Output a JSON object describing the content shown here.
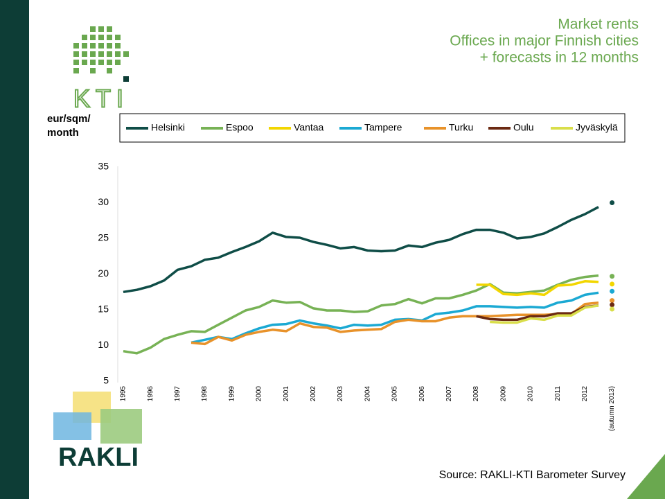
{
  "logos": [
    "KTI",
    "RAKLI"
  ],
  "chart_data": {
    "type": "line",
    "title": [
      "Market rents",
      "Offices in major Finnish cities",
      "+ forecasts in 12 months"
    ],
    "y_label": [
      "eur/sqm/",
      "month"
    ],
    "source": "Source: RAKLI-KTI Barometer Survey",
    "categories": [
      "1995",
      null,
      "1996",
      null,
      "1997",
      null,
      "1998",
      null,
      "1999",
      null,
      "2000",
      null,
      "2001",
      null,
      "2002",
      null,
      "2003",
      null,
      "2004",
      null,
      "2005",
      null,
      "2006",
      null,
      "2007",
      null,
      "2008",
      null,
      "2009",
      null,
      "2010",
      null,
      "2011",
      null,
      "2012",
      null,
      "(autumn 2013)"
    ],
    "ylim": [
      5,
      35
    ],
    "yticks": [
      5,
      10,
      15,
      20,
      25,
      30,
      35
    ],
    "grid": false,
    "series": [
      {
        "name": "Helsinki",
        "color": "#0f4d47",
        "values": [
          17.5,
          17.8,
          18.3,
          19.1,
          20.6,
          21.1,
          22.0,
          22.3,
          23.1,
          23.8,
          24.6,
          25.8,
          25.2,
          25.1,
          24.5,
          24.1,
          23.6,
          23.8,
          23.3,
          23.2,
          23.3,
          24.0,
          23.8,
          24.4,
          24.8,
          25.6,
          26.2,
          26.2,
          25.8,
          25.0,
          25.2,
          25.7,
          26.6,
          27.6,
          28.4,
          29.4,
          30.0
        ]
      },
      {
        "name": "Espoo",
        "color": "#77b255",
        "values": [
          9.2,
          8.9,
          9.7,
          10.9,
          11.5,
          12.0,
          11.9,
          12.9,
          13.9,
          14.9,
          15.4,
          16.3,
          16.0,
          16.1,
          15.2,
          14.9,
          14.9,
          14.7,
          14.8,
          15.6,
          15.8,
          16.5,
          15.9,
          16.6,
          16.6,
          17.1,
          17.7,
          18.6,
          17.4,
          17.3,
          17.5,
          17.7,
          18.5,
          19.2,
          19.6,
          19.8,
          19.7
        ]
      },
      {
        "name": "Vantaa",
        "color": "#f2d600",
        "values": [
          null,
          null,
          null,
          null,
          null,
          null,
          null,
          null,
          null,
          null,
          null,
          null,
          null,
          null,
          null,
          null,
          null,
          null,
          null,
          null,
          null,
          null,
          null,
          null,
          null,
          null,
          18.5,
          18.5,
          17.2,
          17.1,
          17.3,
          17.1,
          18.4,
          18.5,
          19.0,
          18.9,
          18.6
        ]
      },
      {
        "name": "Tampere",
        "color": "#1ba9d3",
        "values": [
          null,
          null,
          null,
          null,
          null,
          10.4,
          10.8,
          11.2,
          10.9,
          11.7,
          12.4,
          12.9,
          13.0,
          13.5,
          13.1,
          12.8,
          12.4,
          12.9,
          12.8,
          12.9,
          13.6,
          13.7,
          13.5,
          14.4,
          14.6,
          14.9,
          15.5,
          15.5,
          15.4,
          15.3,
          15.4,
          15.3,
          16.0,
          16.3,
          17.1,
          17.4,
          17.6
        ]
      },
      {
        "name": "Turku",
        "color": "#e8922a",
        "values": [
          null,
          null,
          null,
          null,
          null,
          10.4,
          10.2,
          11.2,
          10.7,
          11.5,
          11.9,
          12.2,
          12.0,
          13.1,
          12.6,
          12.5,
          11.9,
          12.1,
          12.2,
          12.3,
          13.3,
          13.6,
          13.4,
          13.4,
          13.9,
          14.1,
          14.1,
          14.1,
          14.2,
          14.3,
          14.3,
          14.3,
          14.4,
          14.4,
          15.8,
          16.0,
          16.3
        ]
      },
      {
        "name": "Oulu",
        "color": "#6b2a12",
        "values": [
          null,
          null,
          null,
          null,
          null,
          null,
          null,
          null,
          null,
          null,
          null,
          null,
          null,
          null,
          null,
          null,
          null,
          null,
          null,
          null,
          null,
          null,
          null,
          null,
          null,
          null,
          14.1,
          13.7,
          13.6,
          13.6,
          14.1,
          14.1,
          14.5,
          14.5,
          15.4,
          15.6,
          15.7
        ]
      },
      {
        "name": "Jyväskylä",
        "color": "#d9de4a",
        "values": [
          null,
          null,
          null,
          null,
          null,
          null,
          null,
          null,
          null,
          null,
          null,
          null,
          null,
          null,
          null,
          null,
          null,
          null,
          null,
          null,
          null,
          null,
          null,
          null,
          null,
          null,
          null,
          13.3,
          13.2,
          13.2,
          13.8,
          13.6,
          14.2,
          14.2,
          15.3,
          15.6,
          15.1
        ]
      }
    ]
  }
}
